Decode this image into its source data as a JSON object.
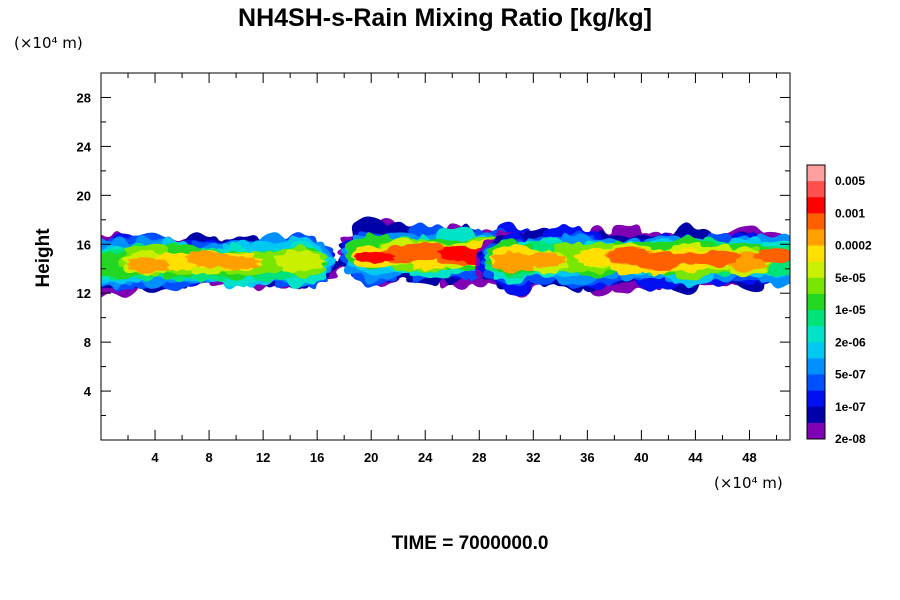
{
  "chart_data": {
    "type": "heatmap",
    "title": "NH4SH-s-Rain Mixing Ratio [kg/kg]",
    "ylabel": "Height",
    "x_unit": "(×10⁴ m)",
    "y_unit": "(×10⁴ m)",
    "footer": "TIME = 7000000.0",
    "xlim": [
      0,
      51
    ],
    "ylim": [
      0,
      30
    ],
    "x_ticks": [
      4,
      8,
      12,
      16,
      20,
      24,
      28,
      32,
      36,
      40,
      44,
      48
    ],
    "y_ticks": [
      4,
      8,
      12,
      16,
      20,
      24,
      28
    ],
    "colorbar": {
      "labels": [
        "0.005",
        "0.001",
        "0.0002",
        "5e-05",
        "1e-05",
        "2e-06",
        "5e-07",
        "1e-07",
        "2e-08"
      ],
      "colors": [
        "#ff9f9f",
        "#ff5050",
        "#ff0000",
        "#ff6000",
        "#ffa000",
        "#ffe000",
        "#c8f000",
        "#78e600",
        "#22d622",
        "#00e27a",
        "#00e2c8",
        "#00c8f0",
        "#0090ff",
        "#0050ff",
        "#0010f0",
        "#0000a8",
        "#8000b4"
      ]
    },
    "clouds": [
      {
        "x0": 0,
        "x1": 15.8,
        "y_center": 14.5,
        "peak_level": 13
      },
      {
        "x0": 19.2,
        "x1": 31.5,
        "y_center": 15.2,
        "peak_level": 15
      },
      {
        "x0": 29.5,
        "x1": 51,
        "y_center": 14.8,
        "peak_level": 14
      }
    ]
  }
}
